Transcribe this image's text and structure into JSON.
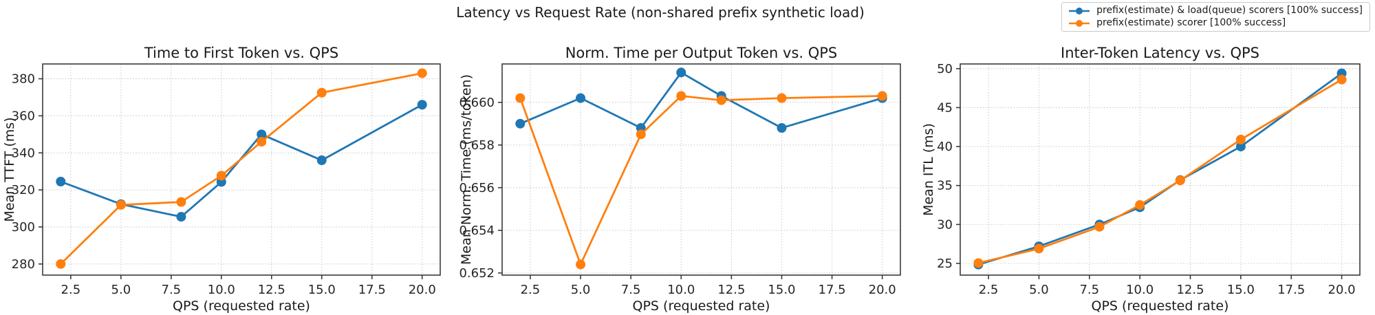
{
  "figure": {
    "suptitle": "Latency vs Request Rate (non-shared prefix synthetic load)"
  },
  "legend": {
    "position": "figure-top-right",
    "entries": [
      {
        "label": "prefix(estimate) & load(queue) scorers [100% success]",
        "color": "#1f77b4"
      },
      {
        "label": "prefix(estimate) scorer [100% success]",
        "color": "#ff7f0e"
      }
    ]
  },
  "chart_data": [
    {
      "type": "line",
      "title": "Time to First Token vs. QPS",
      "xlabel": "QPS (requested rate)",
      "ylabel": "Mean TTFT (ms)",
      "x": [
        2,
        5,
        8,
        10,
        12,
        15,
        20
      ],
      "xlim": [
        1.1,
        20.9
      ],
      "ylim": [
        274,
        388
      ],
      "xticks": [
        "2.5",
        "5.0",
        "7.5",
        "10.0",
        "12.5",
        "15.0",
        "17.5",
        "20.0"
      ],
      "yticks": [
        "280",
        "300",
        "320",
        "340",
        "360",
        "380"
      ],
      "grid": true,
      "series": [
        {
          "name": "prefix(estimate) & load(queue) scorers [100% success]",
          "color": "#1f77b4",
          "values": [
            324.5,
            312.3,
            305.5,
            324.3,
            350,
            336,
            366
          ]
        },
        {
          "name": "prefix(estimate) scorer [100% success]",
          "color": "#ff7f0e",
          "values": [
            280,
            311.9,
            313.5,
            327.7,
            346,
            372.5,
            383
          ]
        }
      ]
    },
    {
      "type": "line",
      "title": "Norm. Time per Output Token vs. QPS",
      "xlabel": "QPS (requested rate)",
      "ylabel": "Mean Norm. Time (ms/token)",
      "x": [
        2,
        5,
        8,
        10,
        12,
        15,
        20
      ],
      "xlim": [
        1.1,
        20.9
      ],
      "ylim": [
        0.6519,
        0.6618
      ],
      "xticks": [
        "2.5",
        "5.0",
        "7.5",
        "10.0",
        "12.5",
        "15.0",
        "17.5",
        "20.0"
      ],
      "yticks": [
        "0.652",
        "0.654",
        "0.656",
        "0.658",
        "0.660"
      ],
      "grid": true,
      "series": [
        {
          "name": "prefix(estimate) & load(queue) scorers [100% success]",
          "color": "#1f77b4",
          "values": [
            0.659,
            0.6602,
            0.6588,
            0.6614,
            0.6603,
            0.6588,
            0.6602
          ]
        },
        {
          "name": "prefix(estimate) scorer [100% success]",
          "color": "#ff7f0e",
          "values": [
            0.6602,
            0.6524,
            0.6585,
            0.6603,
            0.6601,
            0.6602,
            0.6603
          ]
        }
      ]
    },
    {
      "type": "line",
      "title": "Inter-Token Latency vs. QPS",
      "xlabel": "QPS (requested rate)",
      "ylabel": "Mean ITL (ms)",
      "x": [
        2,
        5,
        8,
        10,
        12,
        15,
        20
      ],
      "xlim": [
        1.1,
        20.9
      ],
      "ylim": [
        23.5,
        50.6
      ],
      "xticks": [
        "2.5",
        "5.0",
        "7.5",
        "10.0",
        "12.5",
        "15.0",
        "17.5",
        "20.0"
      ],
      "yticks": [
        "25",
        "30",
        "35",
        "40",
        "45",
        "50"
      ],
      "grid": true,
      "series": [
        {
          "name": "prefix(estimate) & load(queue) scorers [100% success]",
          "color": "#1f77b4",
          "values": [
            24.85,
            27.2,
            30.0,
            32.2,
            35.7,
            40.0,
            49.4
          ]
        },
        {
          "name": "prefix(estimate) scorer [100% success]",
          "color": "#ff7f0e",
          "values": [
            25.05,
            26.9,
            29.7,
            32.5,
            35.65,
            40.9,
            48.6
          ]
        }
      ]
    }
  ]
}
